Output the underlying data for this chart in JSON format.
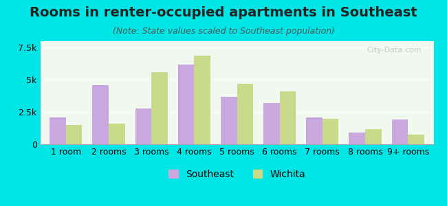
{
  "title": "Rooms in renter-occupied apartments in Southeast",
  "subtitle": "(Note: State values scaled to Southeast population)",
  "categories": [
    "1 room",
    "2 rooms",
    "3 rooms",
    "4 rooms",
    "5 rooms",
    "6 rooms",
    "7 rooms",
    "8 rooms",
    "9+ rooms"
  ],
  "southeast_values": [
    2100,
    4600,
    2800,
    6200,
    3700,
    3200,
    2100,
    900,
    1900
  ],
  "wichita_values": [
    1500,
    1600,
    5600,
    6900,
    4700,
    4100,
    2000,
    1200,
    750
  ],
  "southeast_color": "#c9a8e0",
  "wichita_color": "#c8d98a",
  "background_color": "#00e5e5",
  "plot_bg": "#f0f8f0",
  "ylim": [
    0,
    8000
  ],
  "yticks": [
    0,
    2500,
    5000,
    7500
  ],
  "ytick_labels": [
    "0",
    "2.5k",
    "5k",
    "7.5k"
  ],
  "bar_width": 0.38,
  "legend_southeast": "Southeast",
  "legend_wichita": "Wichita",
  "title_fontsize": 14,
  "subtitle_fontsize": 9,
  "tick_fontsize": 9,
  "legend_fontsize": 10
}
